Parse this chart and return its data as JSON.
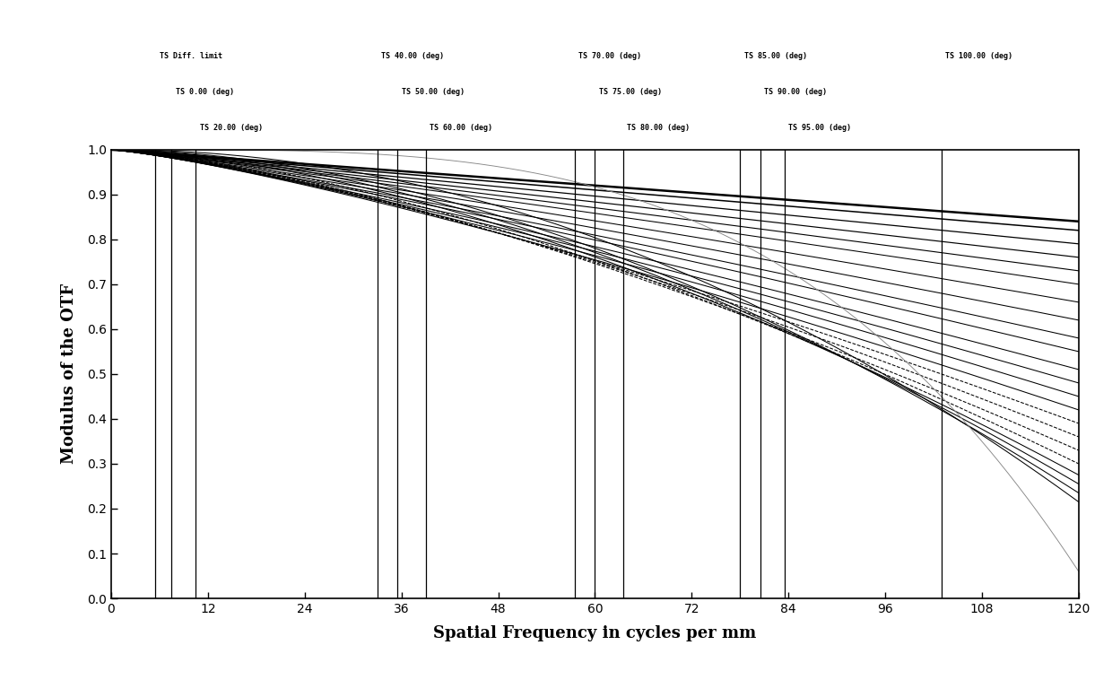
{
  "xlabel": "Spatial Frequency in cycles per mm",
  "ylabel": "Modulus of the OTF",
  "xlim": [
    0,
    120
  ],
  "ylim": [
    0.0,
    1.0
  ],
  "xticks": [
    0,
    12,
    24,
    36,
    48,
    60,
    72,
    84,
    96,
    108,
    120
  ],
  "yticks": [
    0.0,
    0.1,
    0.2,
    0.3,
    0.4,
    0.5,
    0.6,
    0.7,
    0.8,
    0.9,
    1.0
  ],
  "background_color": "#ffffff",
  "vline_groups": [
    [
      {
        "x": 5.5,
        "label": "TS Diff. limit"
      },
      {
        "x": 7.5,
        "label": "TS 0.00 (deg)"
      },
      {
        "x": 10.5,
        "label": "TS 20.00 (deg)"
      }
    ],
    [
      {
        "x": 33.0,
        "label": "TS 40.00 (deg)"
      },
      {
        "x": 35.5,
        "label": "TS 50.00 (deg)"
      },
      {
        "x": 39.0,
        "label": "TS 60.00 (deg)"
      }
    ],
    [
      {
        "x": 57.5,
        "label": "TS 70.00 (deg)"
      },
      {
        "x": 60.0,
        "label": "TS 75.00 (deg)"
      },
      {
        "x": 63.5,
        "label": "TS 80.00 (deg)"
      }
    ],
    [
      {
        "x": 78.0,
        "label": "TS 85.00 (deg)"
      },
      {
        "x": 80.5,
        "label": "TS 90.00 (deg)"
      },
      {
        "x": 83.5,
        "label": "TS 95.00 (deg)"
      }
    ],
    [
      {
        "x": 103.0,
        "label": "TS 100.00 (deg)"
      }
    ]
  ],
  "curves": [
    {
      "end_y": 0.84,
      "power": 1.0,
      "color": "#000000",
      "lw": 1.8,
      "ls": "-"
    },
    {
      "end_y": 0.82,
      "power": 1.0,
      "color": "#000000",
      "lw": 1.1,
      "ls": "-"
    },
    {
      "end_y": 0.79,
      "power": 1.02,
      "color": "#000000",
      "lw": 0.9,
      "ls": "-"
    },
    {
      "end_y": 0.76,
      "power": 1.04,
      "color": "#000000",
      "lw": 0.85,
      "ls": "-"
    },
    {
      "end_y": 0.73,
      "power": 1.06,
      "color": "#000000",
      "lw": 0.8,
      "ls": "-"
    },
    {
      "end_y": 0.7,
      "power": 1.08,
      "color": "#000000",
      "lw": 0.75,
      "ls": "-"
    },
    {
      "end_y": 0.66,
      "power": 1.1,
      "color": "#000000",
      "lw": 0.75,
      "ls": "-"
    },
    {
      "end_y": 0.62,
      "power": 1.12,
      "color": "#000000",
      "lw": 0.75,
      "ls": "-"
    },
    {
      "end_y": 0.58,
      "power": 1.14,
      "color": "#000000",
      "lw": 0.75,
      "ls": "-"
    },
    {
      "end_y": 0.55,
      "power": 1.16,
      "color": "#000000",
      "lw": 0.75,
      "ls": "-"
    },
    {
      "end_y": 0.51,
      "power": 1.18,
      "color": "#000000",
      "lw": 0.75,
      "ls": "-"
    },
    {
      "end_y": 0.48,
      "power": 1.2,
      "color": "#000000",
      "lw": 0.75,
      "ls": "-"
    },
    {
      "end_y": 0.45,
      "power": 1.22,
      "color": "#000000",
      "lw": 0.75,
      "ls": "-"
    },
    {
      "end_y": 0.42,
      "power": 1.24,
      "color": "#000000",
      "lw": 0.75,
      "ls": "-"
    },
    {
      "end_y": 0.39,
      "power": 1.3,
      "color": "#000000",
      "lw": 0.75,
      "ls": "--"
    },
    {
      "end_y": 0.36,
      "power": 1.35,
      "color": "#000000",
      "lw": 0.75,
      "ls": "--"
    },
    {
      "end_y": 0.33,
      "power": 1.4,
      "color": "#000000",
      "lw": 0.75,
      "ls": "--"
    },
    {
      "end_y": 0.3,
      "power": 1.5,
      "color": "#000000",
      "lw": 0.75,
      "ls": "--"
    },
    {
      "end_y": 0.275,
      "power": 1.6,
      "color": "#000000",
      "lw": 0.75,
      "ls": "-"
    },
    {
      "end_y": 0.255,
      "power": 1.7,
      "color": "#000000",
      "lw": 0.75,
      "ls": "-"
    },
    {
      "end_y": 0.235,
      "power": 1.8,
      "color": "#000000",
      "lw": 0.75,
      "ls": "-"
    },
    {
      "end_y": 0.215,
      "power": 2.0,
      "color": "#000000",
      "lw": 0.75,
      "ls": "-"
    },
    {
      "end_y": 0.06,
      "power": 3.5,
      "color": "#888888",
      "lw": 0.65,
      "ls": "-"
    }
  ]
}
